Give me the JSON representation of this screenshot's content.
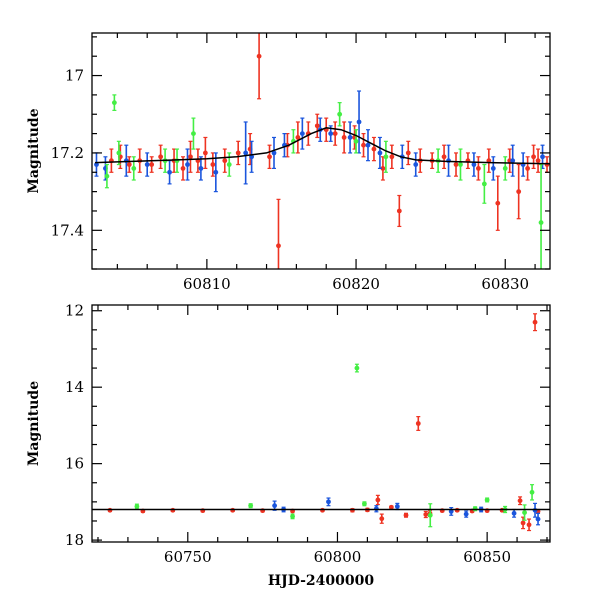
{
  "colors": {
    "red": "#ee3322",
    "blue": "#1a55dd",
    "green": "#44ee44",
    "model": "#000000"
  },
  "chart_data": [
    {
      "type": "scatter",
      "name": "zoom-panel",
      "ylabel": "Magnitude",
      "xlabel": "",
      "xlim": [
        60802.3,
        60833.0
      ],
      "ylim": [
        17.5,
        16.89
      ],
      "y_inverted": true,
      "xticks": [
        60810,
        60820,
        60830
      ],
      "xtick_labels": [
        "60810",
        "60820",
        "60830"
      ],
      "yticks": [
        17.0,
        17.2,
        17.4
      ],
      "ytick_labels": [
        "17",
        "17.2",
        "17.4"
      ],
      "model_curve": {
        "x": [
          60802.5,
          60805,
          60808,
          60810,
          60812,
          60814,
          60815.5,
          60817,
          60818,
          60819,
          60820,
          60821,
          60822,
          60823,
          60824,
          60826,
          60829,
          60833
        ],
        "y": [
          17.225,
          17.222,
          17.218,
          17.215,
          17.21,
          17.2,
          17.18,
          17.15,
          17.135,
          17.14,
          17.155,
          17.175,
          17.195,
          17.21,
          17.218,
          17.222,
          17.225,
          17.228
        ]
      },
      "series": [
        {
          "color": "red",
          "points": [
            [
              60803.6,
              17.22,
              0.03
            ],
            [
              60804.2,
              17.21,
              0.03
            ],
            [
              60804.8,
              17.23,
              0.02
            ],
            [
              60805.5,
              17.22,
              0.03
            ],
            [
              60806.3,
              17.23,
              0.02
            ],
            [
              60806.9,
              17.21,
              0.03
            ],
            [
              60807.8,
              17.22,
              0.03
            ],
            [
              60808.4,
              17.24,
              0.03
            ],
            [
              60808.9,
              17.21,
              0.04
            ],
            [
              60809.4,
              17.22,
              0.03
            ],
            [
              60809.9,
              17.2,
              0.04
            ],
            [
              60810.4,
              17.23,
              0.03
            ],
            [
              60811.2,
              17.22,
              0.03
            ],
            [
              60812.1,
              17.2,
              0.03
            ],
            [
              60812.9,
              17.19,
              0.04
            ],
            [
              60813.5,
              16.95,
              0.11
            ],
            [
              60814.2,
              17.21,
              0.03
            ],
            [
              60814.8,
              17.44,
              0.12
            ],
            [
              60815.4,
              17.18,
              0.03
            ],
            [
              60816.1,
              17.16,
              0.04
            ],
            [
              60816.8,
              17.15,
              0.03
            ],
            [
              60817.4,
              17.13,
              0.03
            ],
            [
              60818.0,
              17.14,
              0.03
            ],
            [
              60818.6,
              17.15,
              0.03
            ],
            [
              60819.2,
              17.16,
              0.04
            ],
            [
              60819.9,
              17.16,
              0.03
            ],
            [
              60820.5,
              17.18,
              0.03
            ],
            [
              60821.2,
              17.19,
              0.03
            ],
            [
              60821.8,
              17.24,
              0.03
            ],
            [
              60822.4,
              17.21,
              0.03
            ],
            [
              60822.9,
              17.35,
              0.04
            ],
            [
              60823.5,
              17.2,
              0.03
            ],
            [
              60824.3,
              17.22,
              0.03
            ],
            [
              60825.1,
              17.22,
              0.02
            ],
            [
              60825.9,
              17.21,
              0.03
            ],
            [
              60826.7,
              17.23,
              0.03
            ],
            [
              60827.5,
              17.22,
              0.02
            ],
            [
              60828.2,
              17.24,
              0.03
            ],
            [
              60828.9,
              17.22,
              0.03
            ],
            [
              60829.5,
              17.33,
              0.07
            ],
            [
              60830.3,
              17.22,
              0.03
            ],
            [
              60830.9,
              17.3,
              0.07
            ],
            [
              60831.5,
              17.24,
              0.03
            ],
            [
              60832.2,
              17.22,
              0.03
            ],
            [
              60832.8,
              17.23,
              0.02
            ],
            [
              60831.9,
              17.21,
              0.03
            ]
          ]
        },
        {
          "color": "blue",
          "points": [
            [
              60802.6,
              17.23,
              0.03
            ],
            [
              60803.2,
              17.24,
              0.03
            ],
            [
              60804.6,
              17.22,
              0.04
            ],
            [
              60806.0,
              17.23,
              0.03
            ],
            [
              60807.5,
              17.25,
              0.03
            ],
            [
              60808.7,
              17.23,
              0.04
            ],
            [
              60809.6,
              17.24,
              0.03
            ],
            [
              60810.6,
              17.25,
              0.05
            ],
            [
              60812.6,
              17.2,
              0.08
            ],
            [
              60813.0,
              17.21,
              0.04
            ],
            [
              60814.5,
              17.2,
              0.04
            ],
            [
              60815.2,
              17.18,
              0.03
            ],
            [
              60816.4,
              17.15,
              0.04
            ],
            [
              60817.6,
              17.14,
              0.03
            ],
            [
              60818.3,
              17.15,
              0.02
            ],
            [
              60819.6,
              17.16,
              0.04
            ],
            [
              60820.2,
              17.12,
              0.08
            ],
            [
              60820.8,
              17.18,
              0.04
            ],
            [
              60821.6,
              17.2,
              0.04
            ],
            [
              60823.1,
              17.21,
              0.03
            ],
            [
              60824.0,
              17.23,
              0.03
            ],
            [
              60826.2,
              17.22,
              0.04
            ],
            [
              60827.9,
              17.23,
              0.03
            ],
            [
              60829.2,
              17.24,
              0.03
            ],
            [
              60830.5,
              17.22,
              0.04
            ],
            [
              60831.2,
              17.23,
              0.03
            ],
            [
              60832.5,
              17.21,
              0.03
            ]
          ]
        },
        {
          "color": "green",
          "points": [
            [
              60803.3,
              17.26,
              0.03
            ],
            [
              60803.8,
              17.07,
              0.02
            ],
            [
              60804.1,
              17.2,
              0.03
            ],
            [
              60805.1,
              17.24,
              0.03
            ],
            [
              60807.2,
              17.22,
              0.03
            ],
            [
              60808.0,
              17.22,
              0.03
            ],
            [
              60809.1,
              17.15,
              0.04
            ],
            [
              60811.5,
              17.23,
              0.03
            ],
            [
              60815.8,
              17.17,
              0.03
            ],
            [
              60818.9,
              17.1,
              0.03
            ],
            [
              60820.0,
              17.17,
              0.03
            ],
            [
              60822.0,
              17.21,
              0.04
            ],
            [
              60825.5,
              17.22,
              0.03
            ],
            [
              60827.0,
              17.23,
              0.04
            ],
            [
              60828.6,
              17.28,
              0.05
            ],
            [
              60830.0,
              17.24,
              0.03
            ],
            [
              60832.4,
              17.38,
              0.15
            ]
          ]
        }
      ]
    },
    {
      "type": "scatter",
      "name": "full-panel",
      "ylabel": "Magnitude",
      "xlabel": "HJD-2400000",
      "xlim": [
        60718,
        60871
      ],
      "ylim": [
        18.05,
        11.85
      ],
      "y_inverted": true,
      "xticks": [
        60750,
        60800,
        60850
      ],
      "xtick_labels": [
        "60750",
        "60800",
        "60850"
      ],
      "yticks": [
        12,
        14,
        16,
        18
      ],
      "ytick_labels": [
        "12",
        "14",
        "16",
        "18"
      ],
      "reference_line": 17.2,
      "series": [
        {
          "color": "red",
          "points": [
            [
              60724,
              17.22,
              0.03
            ],
            [
              60735,
              17.24,
              0.03
            ],
            [
              60745,
              17.22,
              0.03
            ],
            [
              60755,
              17.23,
              0.03
            ],
            [
              60765,
              17.22,
              0.03
            ],
            [
              60775,
              17.23,
              0.03
            ],
            [
              60785,
              17.24,
              0.03
            ],
            [
              60795,
              17.22,
              0.03
            ],
            [
              60805,
              17.22,
              0.04
            ],
            [
              60810,
              17.21,
              0.04
            ],
            [
              60813.5,
              16.95,
              0.12
            ],
            [
              60814.8,
              17.44,
              0.12
            ],
            [
              60818,
              17.14,
              0.03
            ],
            [
              60822.9,
              17.35,
              0.05
            ],
            [
              60827,
              14.95,
              0.18
            ],
            [
              60829.5,
              17.33,
              0.08
            ],
            [
              60830.9,
              17.3,
              0.08
            ],
            [
              60835,
              17.23,
              0.03
            ],
            [
              60840,
              17.22,
              0.03
            ],
            [
              60845,
              17.24,
              0.03
            ],
            [
              60850,
              17.23,
              0.03
            ],
            [
              60855,
              17.22,
              0.03
            ],
            [
              60861,
              16.97,
              0.1
            ],
            [
              60862,
              17.55,
              0.15
            ],
            [
              60864,
              17.6,
              0.15
            ],
            [
              60866,
              12.3,
              0.22
            ],
            [
              60867,
              17.25,
              0.05
            ]
          ]
        },
        {
          "color": "blue",
          "points": [
            [
              60779,
              17.1,
              0.12
            ],
            [
              60782,
              17.2,
              0.06
            ],
            [
              60797,
              17.0,
              0.1
            ],
            [
              60813,
              17.18,
              0.08
            ],
            [
              60820,
              17.12,
              0.08
            ],
            [
              60838,
              17.25,
              0.1
            ],
            [
              60843,
              17.32,
              0.08
            ],
            [
              60848,
              17.2,
              0.06
            ],
            [
              60859,
              17.3,
              0.1
            ],
            [
              60866,
              17.22,
              0.18
            ],
            [
              60867,
              17.45,
              0.15
            ]
          ]
        },
        {
          "color": "green",
          "points": [
            [
              60733,
              17.12,
              0.06
            ],
            [
              60771,
              17.1,
              0.05
            ],
            [
              60785,
              17.38,
              0.06
            ],
            [
              60806.5,
              13.5,
              0.1
            ],
            [
              60809,
              17.05,
              0.05
            ],
            [
              60831,
              17.35,
              0.3
            ],
            [
              60846,
              17.18,
              0.05
            ],
            [
              60850,
              16.95,
              0.05
            ],
            [
              60856,
              17.2,
              0.08
            ],
            [
              60862.5,
              17.28,
              0.2
            ],
            [
              60865,
              16.75,
              0.2
            ]
          ]
        }
      ]
    }
  ]
}
